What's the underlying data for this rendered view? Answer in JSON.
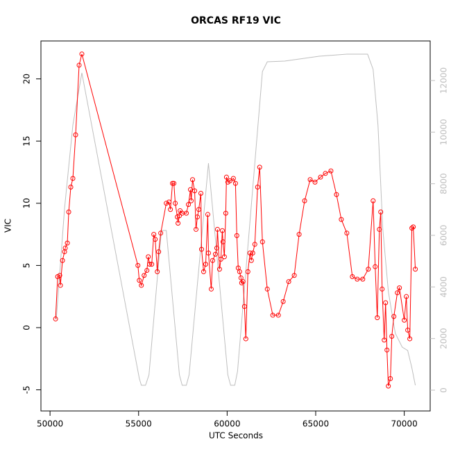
{
  "chart_data": {
    "type": "line",
    "title": "ORCAS RF19 VIC",
    "xlabel": "UTC Seconds",
    "ylabel": "VIC",
    "xlim": [
      49486,
      71464
    ],
    "xticks": [
      50000,
      55000,
      60000,
      65000,
      70000
    ],
    "ylim": [
      -6.7,
      23.05
    ],
    "yticks": [
      -5,
      0,
      5,
      10,
      15,
      20
    ],
    "y2lim": [
      -807,
      13533
    ],
    "y2ticks": [
      0,
      2000,
      4000,
      6000,
      8000,
      10000,
      12000
    ],
    "series": [
      {
        "color": "#ff0000",
        "axis": "y",
        "markers": true,
        "x": [
          50313,
          50430,
          50547,
          50586,
          50703,
          50820,
          50859,
          50977,
          51055,
          51172,
          51289,
          51445,
          51641,
          51797,
          54961,
          55039,
          55156,
          55313,
          55469,
          55547,
          55625,
          55742,
          55859,
          55938,
          56055,
          56133,
          56250,
          56563,
          56719,
          56797,
          56914,
          56992,
          57070,
          57188,
          57227,
          57305,
          57344,
          57461,
          57695,
          57813,
          57930,
          57969,
          58047,
          58164,
          58242,
          58320,
          58398,
          58516,
          58555,
          58672,
          58789,
          58906,
          58945,
          59102,
          59180,
          59336,
          59414,
          59453,
          59570,
          59648,
          59727,
          59766,
          59844,
          59922,
          59961,
          60039,
          60156,
          60352,
          60469,
          60547,
          60625,
          60703,
          60781,
          60820,
          60898,
          60977,
          61055,
          61172,
          61289,
          61367,
          61445,
          61563,
          61719,
          61836,
          61992,
          62266,
          62578,
          62891,
          63164,
          63477,
          63789,
          64063,
          64375,
          64688,
          64961,
          65273,
          65547,
          65859,
          66172,
          66445,
          66758,
          67070,
          67344,
          67656,
          67969,
          68242,
          68359,
          68477,
          68594,
          68672,
          68750,
          68867,
          68945,
          69023,
          69102,
          69219,
          69297,
          69414,
          69609,
          69727,
          70000,
          70117,
          70195,
          70313,
          70430,
          70508,
          70625
        ],
        "values": [
          0.7,
          4.1,
          4.2,
          3.4,
          5.4,
          6.1,
          6.4,
          6.8,
          9.3,
          11.3,
          12.0,
          15.5,
          21.1,
          22.0,
          5.0,
          3.8,
          3.4,
          4.2,
          4.6,
          5.7,
          5.1,
          5.1,
          7.5,
          7.1,
          4.5,
          6.1,
          7.6,
          10.0,
          10.1,
          9.5,
          11.6,
          11.6,
          10.0,
          8.9,
          8.4,
          9.0,
          9.4,
          9.2,
          9.2,
          9.9,
          11.1,
          10.2,
          11.9,
          11.0,
          7.9,
          8.9,
          9.5,
          10.8,
          6.3,
          4.5,
          5.1,
          9.1,
          6.0,
          3.1,
          5.4,
          5.9,
          6.4,
          7.9,
          4.7,
          5.5,
          7.8,
          6.9,
          5.7,
          9.2,
          12.1,
          11.7,
          11.8,
          12.0,
          11.6,
          7.4,
          4.8,
          4.5,
          4.0,
          3.6,
          3.7,
          1.7,
          -0.9,
          4.5,
          6.0,
          5.4,
          6.0,
          6.7,
          11.3,
          12.9,
          6.9,
          3.1,
          1.0,
          1.0,
          2.1,
          3.7,
          4.2,
          7.5,
          10.2,
          11.9,
          11.7,
          12.1,
          12.4,
          12.6,
          10.7,
          8.7,
          7.6,
          4.1,
          3.9,
          3.9,
          4.7,
          10.2,
          4.9,
          0.8,
          7.9,
          9.3,
          3.1,
          -1.0,
          2.0,
          -1.8,
          -4.7,
          -4.1,
          -0.7,
          0.9,
          2.8,
          3.2,
          0.6,
          2.5,
          -0.2,
          -0.9,
          8.0,
          8.1,
          4.7
        ]
      },
      {
        "color": "#bebebe",
        "axis": "y2",
        "markers": false,
        "x": [
          50352,
          50820,
          51289,
          51797,
          55039,
          55156,
          55391,
          55586,
          56289,
          56563,
          57305,
          57461,
          57695,
          57852,
          58945,
          60039,
          60195,
          60430,
          60586,
          61992,
          62266,
          63242,
          65195,
          66758,
          67930,
          68242,
          68516,
          68789,
          69102,
          69492,
          69883,
          70195,
          70430,
          70625
        ],
        "values": [
          2744,
          7049,
          10277,
          12295,
          457,
          188,
          188,
          592,
          6188,
          6188,
          592,
          188,
          188,
          592,
          8797,
          592,
          188,
          188,
          726,
          12349,
          12725,
          12752,
          12940,
          13021,
          13021,
          12430,
          10277,
          6242,
          3820,
          2206,
          1668,
          1534,
          861,
          188
        ]
      }
    ]
  }
}
